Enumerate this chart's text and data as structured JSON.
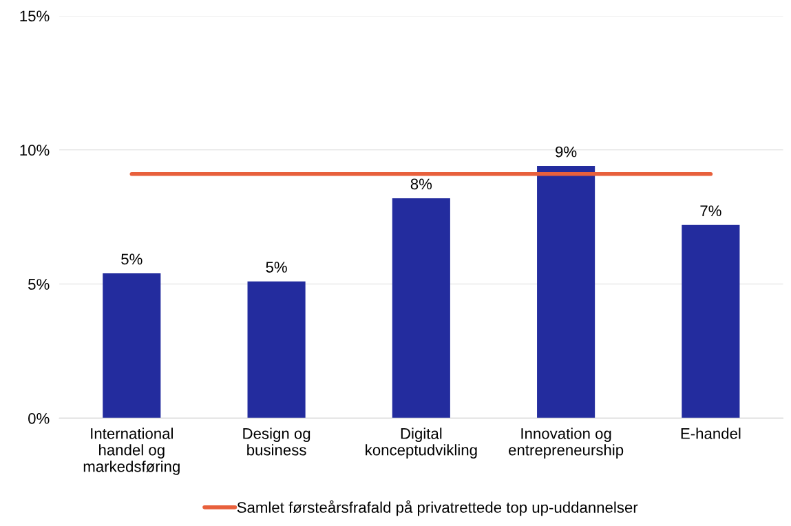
{
  "chart_data": {
    "type": "bar",
    "categories": [
      "International\nhandel og\nmarkedsføring",
      "Design og\nbusiness",
      "Digital\nkonceptudvikling",
      "Innovation og\nentrepreneurship",
      "E-handel"
    ],
    "series": [
      {
        "color": "#232c9e",
        "values": [
          5.4,
          5.1,
          8.2,
          9.4,
          7.2
        ],
        "value_labels": [
          "5%",
          "5%",
          "8%",
          "9%",
          "7%"
        ]
      },
      {
        "type": "line",
        "name": "Samlet førsteårsfrafald på privatrettede top up-uddannelser",
        "color": "#e8603c",
        "values": [
          9.1,
          9.1,
          9.1,
          9.1,
          9.1
        ]
      }
    ],
    "ylim": [
      0,
      15
    ],
    "yticks": [
      {
        "value": 0,
        "label": "0%"
      },
      {
        "value": 5,
        "label": "5%"
      },
      {
        "value": 10,
        "label": "10%"
      },
      {
        "value": 15,
        "label": "15%"
      }
    ],
    "grid": "y",
    "legend": "bottom",
    "marker": "none",
    "line_style": "solid"
  }
}
